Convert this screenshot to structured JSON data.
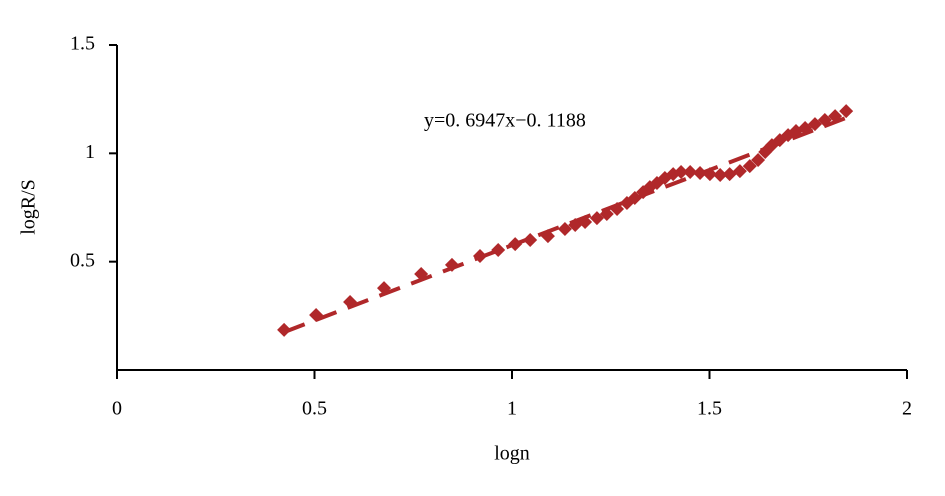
{
  "chart_data": {
    "type": "scatter",
    "x_label": "logn",
    "y_label": "logR/S",
    "annotation": "y=0. 6947x−0. 1188",
    "trendline": {
      "slope": 0.6947,
      "intercept": -0.1188,
      "dashed": true
    },
    "color": "#b0282a",
    "xlim": [
      0,
      2
    ],
    "ylim": [
      0,
      1.5
    ],
    "xticks": [
      0,
      0.5,
      1,
      1.5,
      2
    ],
    "yticks": [
      0.5,
      1,
      1.5
    ],
    "x": [
      0.423,
      0.504,
      0.59,
      0.676,
      0.77,
      0.848,
      0.919,
      0.965,
      1.008,
      1.046,
      1.091,
      1.134,
      1.16,
      1.185,
      1.215,
      1.24,
      1.266,
      1.291,
      1.311,
      1.332,
      1.349,
      1.367,
      1.387,
      1.408,
      1.428,
      1.451,
      1.476,
      1.501,
      1.527,
      1.551,
      1.577,
      1.602,
      1.623,
      1.641,
      1.658,
      1.678,
      1.699,
      1.719,
      1.742,
      1.767,
      1.792,
      1.818,
      1.846
    ],
    "values": [
      0.185,
      0.254,
      0.314,
      0.378,
      0.443,
      0.485,
      0.526,
      0.554,
      0.581,
      0.6,
      0.618,
      0.651,
      0.669,
      0.683,
      0.701,
      0.72,
      0.743,
      0.771,
      0.794,
      0.821,
      0.844,
      0.863,
      0.886,
      0.904,
      0.914,
      0.914,
      0.909,
      0.904,
      0.9,
      0.904,
      0.918,
      0.941,
      0.969,
      1.006,
      1.038,
      1.061,
      1.084,
      1.103,
      1.117,
      1.135,
      1.154,
      1.172,
      1.195
    ]
  }
}
